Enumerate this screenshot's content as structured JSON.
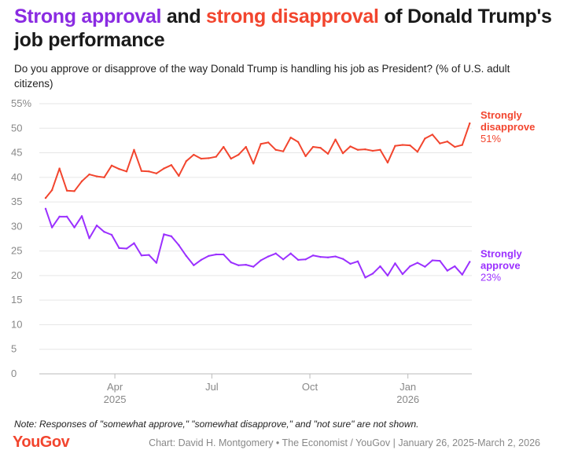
{
  "title": {
    "approve": "Strong approval",
    "connector": " and ",
    "disapprove": "strong disapproval",
    "rest": " of Donald Trump's job performance"
  },
  "subtitle": "Do you approve or disapprove of the way Donald Trump is handling his job as President? (% of U.S. adult citizens)",
  "note": "Note: Responses of \"somewhat approve,\" \"somewhat disapprove,\" and \"not sure\" are not shown.",
  "brand": "YouGov",
  "credit": "Chart: David H. Montgomery • The Economist / YouGov | January 26, 2025-March 2, 2026",
  "colors": {
    "approve": "#9b30ff",
    "disapprove": "#f2452e",
    "grid": "#e6e6e6",
    "tick": "#888888"
  },
  "chart_data": {
    "type": "line",
    "title": "Strong approval and strong disapproval of Donald Trump's job performance",
    "xlabel": "",
    "ylabel": "% of U.S. adult citizens",
    "ylim": [
      0,
      55
    ],
    "yticks": [
      0,
      5,
      10,
      15,
      20,
      25,
      30,
      35,
      40,
      45,
      50,
      55
    ],
    "ytick_labels": [
      "0",
      "5",
      "10",
      "15",
      "20",
      "25",
      "30",
      "35",
      "40",
      "45",
      "50",
      "55%"
    ],
    "xlim": [
      0,
      400
    ],
    "xticks": [
      {
        "day": 65,
        "label": "Apr",
        "sub": "2025"
      },
      {
        "day": 156,
        "label": "Jul",
        "sub": ""
      },
      {
        "day": 248,
        "label": "Oct",
        "sub": ""
      },
      {
        "day": 340,
        "label": "Jan",
        "sub": "2026"
      }
    ],
    "x_unit": "days since January 26, 2025",
    "grid": true,
    "series": [
      {
        "name": "Strongly disapprove",
        "label_line1": "Strongly",
        "label_line2": "disapprove",
        "end_label": "51%",
        "color": "#f2452e",
        "x": [
          0,
          6,
          13,
          20,
          27,
          34,
          41,
          48,
          55,
          62,
          69,
          76,
          83,
          90,
          97,
          104,
          111,
          118,
          125,
          132,
          139,
          146,
          153,
          160,
          167,
          174,
          181,
          188,
          195,
          202,
          209,
          216,
          223,
          230,
          237,
          244,
          251,
          258,
          265,
          272,
          279,
          286,
          293,
          300,
          307,
          314,
          321,
          328,
          335,
          342,
          349,
          356,
          363,
          370,
          377,
          384,
          391,
          398
        ],
        "values": [
          35.8,
          37.4,
          41.8,
          37.3,
          37.2,
          39.2,
          40.6,
          40.2,
          40.0,
          42.4,
          41.7,
          41.2,
          45.6,
          41.3,
          41.2,
          40.8,
          41.8,
          42.5,
          40.3,
          43.3,
          44.6,
          43.8,
          43.9,
          44.2,
          46.2,
          43.8,
          44.6,
          46.2,
          42.8,
          46.8,
          47.1,
          45.6,
          45.3,
          48.1,
          47.2,
          44.3,
          46.2,
          46.0,
          44.8,
          47.7,
          44.9,
          46.3,
          45.6,
          45.7,
          45.4,
          45.6,
          43.0,
          46.4,
          46.6,
          46.5,
          45.2,
          47.9,
          48.7,
          46.9,
          47.3,
          46.2,
          46.6,
          51.0
        ]
      },
      {
        "name": "Strongly approve",
        "label_line1": "Strongly",
        "label_line2": "approve",
        "end_label": "23%",
        "color": "#9b30ff",
        "x": [
          0,
          6,
          13,
          20,
          27,
          34,
          41,
          48,
          55,
          62,
          69,
          76,
          83,
          90,
          97,
          104,
          111,
          118,
          125,
          132,
          139,
          146,
          153,
          160,
          167,
          174,
          181,
          188,
          195,
          202,
          209,
          216,
          223,
          230,
          237,
          244,
          251,
          258,
          265,
          272,
          279,
          286,
          293,
          300,
          307,
          314,
          321,
          328,
          335,
          342,
          349,
          356,
          363,
          370,
          377,
          384,
          391,
          398
        ],
        "values": [
          33.6,
          29.8,
          32.0,
          32.0,
          29.8,
          32.1,
          27.6,
          30.2,
          28.9,
          28.3,
          25.6,
          25.5,
          26.6,
          24.1,
          24.2,
          22.6,
          28.4,
          28.0,
          26.2,
          24.0,
          22.1,
          23.2,
          24.0,
          24.3,
          24.3,
          22.7,
          22.1,
          22.2,
          21.8,
          23.1,
          23.9,
          24.5,
          23.3,
          24.5,
          23.2,
          23.3,
          24.1,
          23.8,
          23.7,
          23.9,
          23.4,
          22.4,
          22.9,
          19.6,
          20.4,
          21.9,
          20.0,
          22.5,
          20.3,
          21.9,
          22.6,
          21.8,
          23.1,
          23.0,
          21.0,
          21.9,
          20.2,
          22.8
        ]
      }
    ]
  }
}
